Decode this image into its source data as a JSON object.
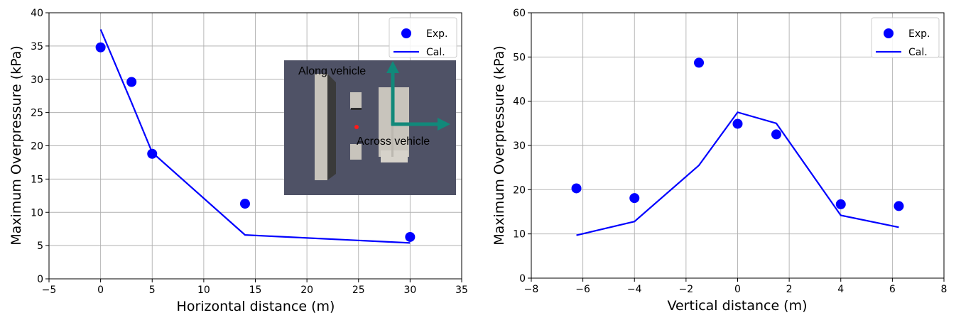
{
  "colors": {
    "series": "#0000ff",
    "grid": "#b0b0b0",
    "inset_bg": "#4f5266",
    "arrow": "#11897a",
    "inset_block": "#c8c4bc"
  },
  "chart_data": [
    {
      "type": "scatter",
      "xlabel": "Horizontal distance (m)",
      "ylabel": "Maximum Overpressure (kPa)",
      "xlim": [
        -5,
        35
      ],
      "ylim": [
        0,
        40
      ],
      "xticks": [
        -5,
        0,
        5,
        10,
        15,
        20,
        25,
        30,
        35
      ],
      "yticks": [
        0,
        5,
        10,
        15,
        20,
        25,
        30,
        35,
        40
      ],
      "xtick_labels": [
        "−5",
        "0",
        "5",
        "10",
        "15",
        "20",
        "25",
        "30",
        "35"
      ],
      "ytick_labels": [
        "0",
        "5",
        "10",
        "15",
        "20",
        "25",
        "30",
        "35",
        "40"
      ],
      "grid": true,
      "legend_position": "top-right",
      "series": [
        {
          "name": "Exp.",
          "style": "markers",
          "x": [
            0,
            3,
            5,
            14,
            30
          ],
          "y": [
            34.8,
            29.6,
            18.8,
            11.3,
            6.3
          ]
        },
        {
          "name": "Cal.",
          "style": "line",
          "x": [
            0,
            3,
            5,
            14,
            30
          ],
          "y": [
            37.5,
            26.5,
            19.0,
            6.6,
            5.4
          ]
        }
      ],
      "inset": {
        "label_along": "Along vehicle",
        "label_across": "Across vehicle"
      }
    },
    {
      "type": "scatter",
      "xlabel": "Vertical distance (m)",
      "ylabel": "Maximum Overpressure (kPa)",
      "xlim": [
        -8,
        8
      ],
      "ylim": [
        0,
        60
      ],
      "xticks": [
        -8,
        -6,
        -4,
        -2,
        0,
        2,
        4,
        6,
        8
      ],
      "yticks": [
        0,
        10,
        20,
        30,
        40,
        50,
        60
      ],
      "xtick_labels": [
        "−8",
        "−6",
        "−4",
        "−2",
        "0",
        "2",
        "4",
        "6",
        "8"
      ],
      "ytick_labels": [
        "0",
        "10",
        "20",
        "30",
        "40",
        "50",
        "60"
      ],
      "grid": true,
      "legend_position": "top-right",
      "series": [
        {
          "name": "Exp.",
          "style": "markers",
          "x": [
            -6.25,
            -4,
            -1.5,
            0,
            1.5,
            4,
            6.25
          ],
          "y": [
            20.3,
            18.1,
            48.7,
            34.9,
            32.5,
            16.7,
            16.3
          ]
        },
        {
          "name": "Cal.",
          "style": "line",
          "x": [
            -6.25,
            -4,
            -1.5,
            0,
            1.5,
            4,
            6.25
          ],
          "y": [
            9.7,
            12.8,
            25.5,
            37.5,
            35.0,
            14.2,
            11.5
          ]
        }
      ]
    }
  ]
}
